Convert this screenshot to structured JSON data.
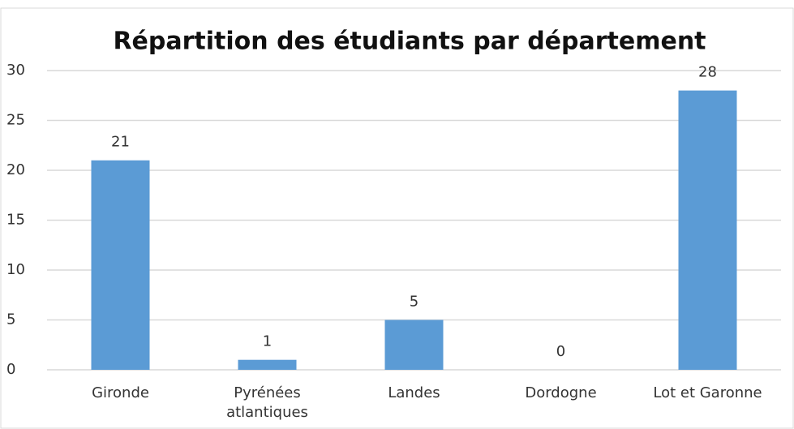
{
  "chart_data": {
    "type": "bar",
    "title": "Répartition des étudiants par département",
    "categories": [
      "Gironde",
      "Pyrénées atlantiques",
      "Landes",
      "Dordogne",
      "Lot et Garonne"
    ],
    "values": [
      21,
      1,
      5,
      0,
      28
    ],
    "color": "#5b9bd5",
    "ylim": [
      0,
      30
    ],
    "yticks": [
      0,
      5,
      10,
      15,
      20,
      25,
      30
    ],
    "grid": true
  }
}
